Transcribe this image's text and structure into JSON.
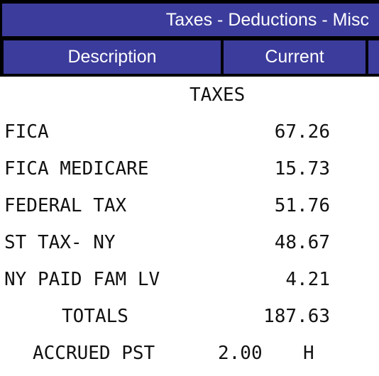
{
  "header": {
    "title": "Taxes - Deductions - Misc"
  },
  "columns": {
    "description": "Description",
    "current": "Current"
  },
  "section_title": "TAXES",
  "rows": [
    {
      "description": "FICA",
      "current": "67.26"
    },
    {
      "description": "FICA MEDICARE",
      "current": "15.73"
    },
    {
      "description": "FEDERAL TAX",
      "current": "51.76"
    },
    {
      "description": "ST TAX- NY",
      "current": "48.67"
    },
    {
      "description": "NY PAID FAM LV",
      "current": "4.21"
    }
  ],
  "totals": {
    "label": "TOTALS",
    "value": "187.63"
  },
  "accrued": {
    "label": "ACCRUED PST",
    "value": "2.00",
    "unit": "H"
  },
  "colors": {
    "header_bg": "#3c3c9c",
    "header_text": "#ffffff",
    "border": "#000000"
  }
}
